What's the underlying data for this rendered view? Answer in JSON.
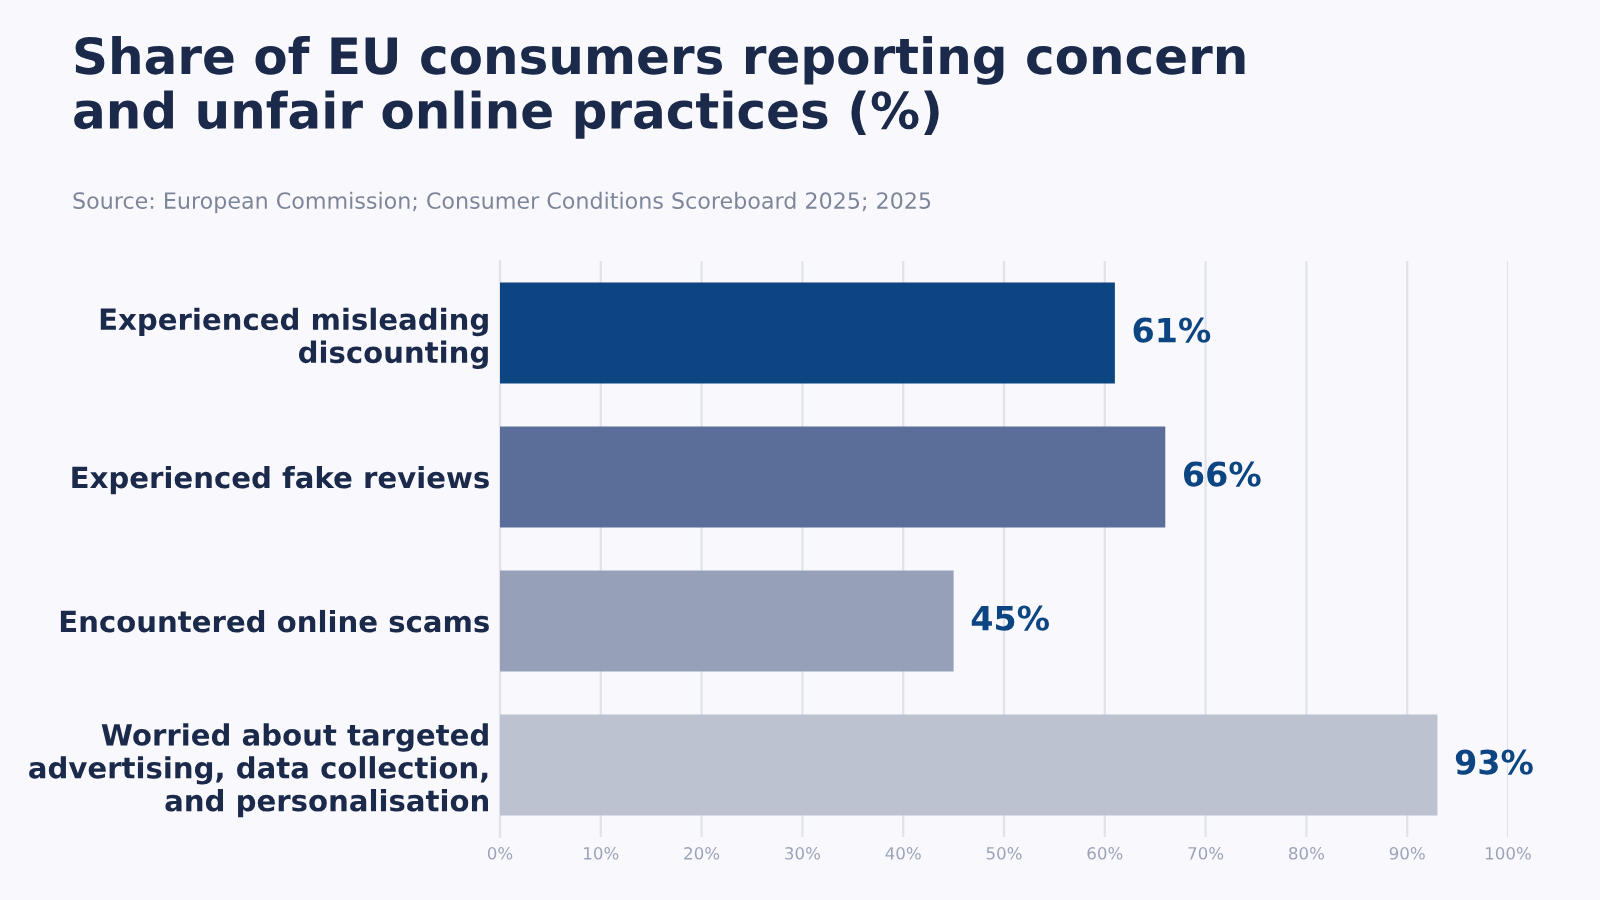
{
  "chart_data": {
    "type": "bar",
    "orientation": "horizontal",
    "title": "Share of EU consumers reporting concern\nand unfair online practices (%)",
    "subtitle": "Source: European Commission; Consumer Conditions Scoreboard 2025; 2025",
    "categories": [
      "Experienced misleading\ndiscounting",
      "Experienced fake reviews",
      "Encountered online scams",
      "Worried about targeted\nadvertising, data collection,\nand personalisation"
    ],
    "values": [
      61,
      66,
      45,
      93
    ],
    "colors": [
      "#0c4582",
      "#5b6e99",
      "#96a1b9",
      "#bcc2d0"
    ],
    "value_labels": [
      "61%",
      "66%",
      "45%",
      "93%"
    ],
    "xlim": [
      0,
      100
    ],
    "xticks": [
      {
        "value": 0,
        "label": "0%"
      },
      {
        "value": 10,
        "label": "10%"
      },
      {
        "value": 20,
        "label": "20%"
      },
      {
        "value": 30,
        "label": "30%"
      },
      {
        "value": 40,
        "label": "40%"
      },
      {
        "value": 50,
        "label": "50%"
      },
      {
        "value": 60,
        "label": "60%"
      },
      {
        "value": 70,
        "label": "70%"
      },
      {
        "value": 80,
        "label": "80%"
      },
      {
        "value": 90,
        "label": "90%"
      },
      {
        "value": 100,
        "label": "100%"
      }
    ],
    "grid": "x"
  }
}
